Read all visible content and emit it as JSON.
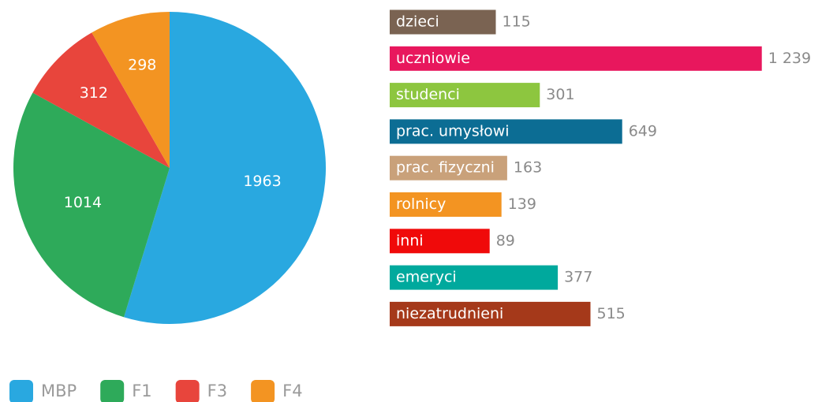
{
  "chart_data": [
    {
      "type": "pie",
      "categories": [
        "MBP",
        "F1",
        "F3",
        "F4"
      ],
      "values": [
        1963,
        1014,
        312,
        298
      ],
      "colors": [
        "#29a8e0",
        "#2eaa5a",
        "#e8453c",
        "#f39422"
      ],
      "legend": "bottom"
    },
    {
      "type": "bar",
      "orientation": "horizontal",
      "categories": [
        "dzieci",
        "uczniowie",
        "studenci",
        "prac. umysłowi",
        "prac. fizyczni",
        "rolnicy",
        "inni",
        "emeryci",
        "niezatrudnieni"
      ],
      "values": [
        115,
        1239,
        301,
        649,
        163,
        139,
        89,
        377,
        515
      ],
      "value_labels": [
        "115",
        "1 239",
        "301",
        "649",
        "163",
        "139",
        "89",
        "377",
        "515"
      ],
      "colors": [
        "#7a6352",
        "#e8175d",
        "#8dc63f",
        "#0c6d94",
        "#c9a17a",
        "#f39422",
        "#f00a0a",
        "#00a99d",
        "#a5391a"
      ]
    }
  ]
}
